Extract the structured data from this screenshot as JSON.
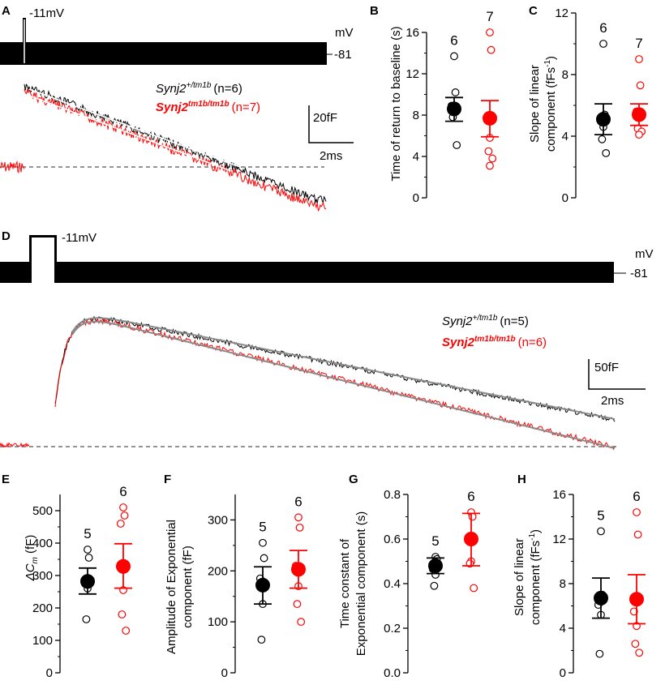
{
  "colors": {
    "wt": "#000000",
    "mut": "#ff0000",
    "fit_a": "#ffffff",
    "fit_d": "#8a8a8a",
    "baseline": "#555555"
  },
  "panel_A": {
    "label": "A",
    "pulse_label": "-11mV",
    "unit_label": "mV",
    "hold_label": "-81",
    "legend": [
      {
        "gene": "Synj2",
        "allele": "+/tm1b",
        "n_text": "(n=6)",
        "color": "#000000"
      },
      {
        "gene": "Synj2",
        "allele": "tm1b/tm1b",
        "n_text": "(n=7)",
        "color": "#ff0000"
      }
    ],
    "scale_y": "20fF",
    "scale_x": "2ms"
  },
  "panel_D": {
    "label": "D",
    "pulse_label": "-11mV",
    "unit_label": "mV",
    "hold_label": "-81",
    "legend": [
      {
        "gene": "Synj2",
        "allele": "+/tm1b",
        "n_text": "(n=5)",
        "color": "#000000"
      },
      {
        "gene": "Synj2",
        "allele": "tm1b/tm1b",
        "n_text": "(n=6)",
        "color": "#ff0000"
      }
    ],
    "scale_y": "50fF",
    "scale_x": "2ms"
  },
  "chart_data": [
    {
      "id": "B",
      "type": "scatter",
      "label": "B",
      "ylabel": "Time of return to baseline (s)",
      "ylim": [
        0,
        16
      ],
      "yticks": [
        0,
        4,
        8,
        12,
        16
      ],
      "groups": [
        {
          "name": "Synj2 +/tm1b",
          "n": "6",
          "color": "#000000",
          "mean": 8.6,
          "sem": [
            7.4,
            9.7
          ],
          "points": [
            13.7,
            10.2,
            8.9,
            8.2,
            7.8,
            5.1
          ]
        },
        {
          "name": "Synj2 tm1b/tm1b",
          "n": "7",
          "color": "#ff0000",
          "mean": 7.7,
          "sem": [
            5.9,
            9.4
          ],
          "points": [
            16.0,
            14.3,
            7.5,
            5.8,
            4.5,
            3.8,
            3.1
          ]
        }
      ]
    },
    {
      "id": "C",
      "type": "scatter",
      "label": "C",
      "ylabel_line1": "Slope of linear",
      "ylabel_line2": "component (fFs",
      "ylabel_sup": "-1",
      "ylabel_close": ")",
      "ylim": [
        0,
        12
      ],
      "yticks": [
        0,
        4,
        8,
        12
      ],
      "groups": [
        {
          "name": "Synj2 +/tm1b",
          "n": "6",
          "color": "#000000",
          "mean": 5.1,
          "sem": [
            4.1,
            6.1
          ],
          "points": [
            10.0,
            5.4,
            5.0,
            4.6,
            3.8,
            2.9
          ]
        },
        {
          "name": "Synj2 tm1b/tm1b",
          "n": "7",
          "color": "#ff0000",
          "mean": 5.4,
          "sem": [
            4.7,
            6.1
          ],
          "points": [
            9.0,
            7.3,
            5.6,
            5.2,
            4.5,
            4.3,
            4.1
          ]
        }
      ]
    },
    {
      "id": "E",
      "type": "scatter",
      "label": "E",
      "ylabel_sym": "ΔC",
      "ylabel_sub": "m",
      "ylabel_unit": " (fF)",
      "ylim": [
        0,
        550
      ],
      "yticks": [
        0,
        100,
        200,
        300,
        400,
        500
      ],
      "groups": [
        {
          "name": "Synj2 +/tm1b",
          "n": "5",
          "color": "#000000",
          "mean": 282,
          "sem": [
            243,
            323
          ],
          "points": [
            380,
            355,
            275,
            260,
            165
          ]
        },
        {
          "name": "Synj2 tm1b/tm1b",
          "n": "6",
          "color": "#ff0000",
          "mean": 328,
          "sem": [
            261,
            398
          ],
          "points": [
            510,
            485,
            460,
            255,
            180,
            130
          ]
        }
      ]
    },
    {
      "id": "F",
      "type": "scatter",
      "label": "F",
      "ylabel_line1": "Amplitude of Exponential",
      "ylabel_line2": "component (fF)",
      "ylim": [
        0,
        350
      ],
      "yticks": [
        0,
        100,
        200,
        300
      ],
      "groups": [
        {
          "name": "Synj2 +/tm1b",
          "n": "5",
          "color": "#000000",
          "mean": 172,
          "sem": [
            135,
            208
          ],
          "points": [
            255,
            225,
            185,
            135,
            65
          ]
        },
        {
          "name": "Synj2 tm1b/tm1b",
          "n": "6",
          "color": "#ff0000",
          "mean": 203,
          "sem": [
            166,
            240
          ],
          "points": [
            305,
            285,
            210,
            170,
            135,
            100
          ]
        }
      ]
    },
    {
      "id": "G",
      "type": "scatter",
      "label": "G",
      "ylabel_line1": "Time constant of",
      "ylabel_line2": "Exponential component (s)",
      "ylim": [
        0,
        0.8
      ],
      "yticks": [
        "0.0",
        "0.2",
        "0.4",
        "0.6",
        "0.8"
      ],
      "groups": [
        {
          "name": "Synj2 +/tm1b",
          "n": "5",
          "color": "#000000",
          "mean": 0.48,
          "sem": [
            0.445,
            0.515
          ],
          "points": [
            0.52,
            0.51,
            0.465,
            0.44,
            0.39
          ]
        },
        {
          "name": "Synj2 tm1b/tm1b",
          "n": "6",
          "color": "#ff0000",
          "mean": 0.6,
          "sem": [
            0.48,
            0.715
          ],
          "points": [
            0.72,
            0.7,
            0.6,
            0.5,
            0.49,
            0.38
          ]
        }
      ]
    },
    {
      "id": "H",
      "type": "scatter",
      "label": "H",
      "ylabel_line1": "Slope of linear",
      "ylabel_line2": "component (fFs",
      "ylabel_sup": "-1",
      "ylabel_close": ")",
      "ylim": [
        0,
        16
      ],
      "yticks": [
        0,
        4,
        8,
        12,
        16
      ],
      "groups": [
        {
          "name": "Synj2 +/tm1b",
          "n": "5",
          "color": "#000000",
          "mean": 6.7,
          "sem": [
            4.9,
            8.5
          ],
          "points": [
            12.7,
            7.0,
            6.1,
            5.2,
            1.7
          ]
        },
        {
          "name": "Synj2 tm1b/tm1b",
          "n": "6",
          "color": "#ff0000",
          "mean": 6.6,
          "sem": [
            4.4,
            8.8
          ],
          "points": [
            14.4,
            12.4,
            5.5,
            4.2,
            2.6,
            1.8
          ]
        }
      ]
    }
  ]
}
